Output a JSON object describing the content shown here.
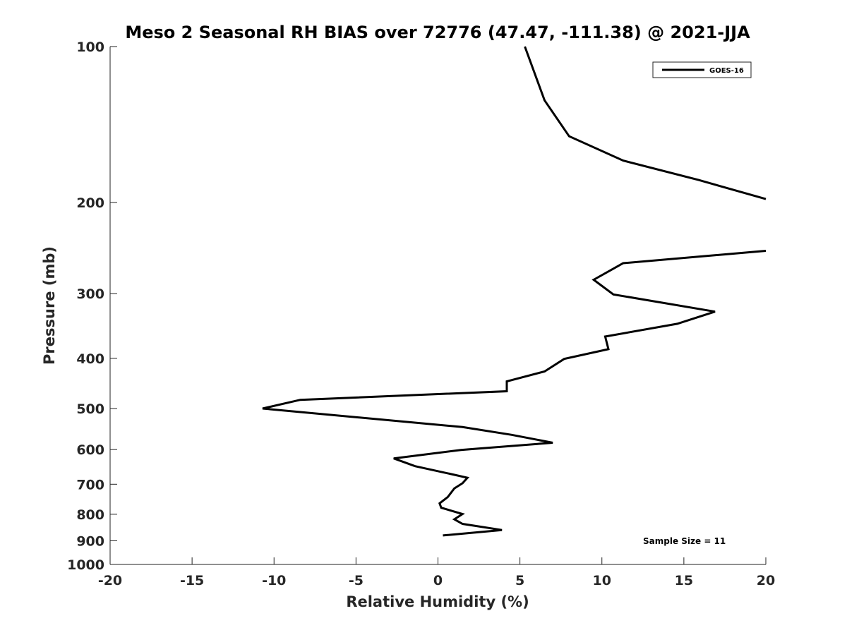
{
  "chart_data": {
    "type": "line",
    "title": "Meso 2 Seasonal RH BIAS over 72776 (47.47, -111.38) @ 2021-JJA",
    "xlabel": "Relative Humidity (%)",
    "ylabel": "Pressure (mb)",
    "xlim": [
      -20,
      20
    ],
    "ylim": [
      100,
      1000
    ],
    "y_scale": "log",
    "y_direction": "reversed",
    "x_ticks": [
      "-20",
      "-15",
      "-10",
      "-5",
      "0",
      "5",
      "10",
      "15",
      "20"
    ],
    "y_ticks": [
      "100",
      "200",
      "300",
      "400",
      "500",
      "600",
      "700",
      "800",
      "900",
      "1000"
    ],
    "legend": {
      "placement": "top-right",
      "entries": [
        "GOES-16"
      ]
    },
    "annotation": "Sample Size = 11",
    "series": [
      {
        "name": "GOES-16",
        "color": "#000000",
        "segments": [
          [
            {
              "x": 5.3,
              "y": 100
            },
            {
              "x": 6.5,
              "y": 127
            },
            {
              "x": 8.0,
              "y": 149
            },
            {
              "x": 11.3,
              "y": 166
            },
            {
              "x": 15.9,
              "y": 181
            },
            {
              "x": 20.0,
              "y": 197
            }
          ],
          [
            {
              "x": 20.0,
              "y": 248
            },
            {
              "x": 11.3,
              "y": 262
            },
            {
              "x": 9.5,
              "y": 282
            },
            {
              "x": 10.7,
              "y": 301
            },
            {
              "x": 16.9,
              "y": 325
            },
            {
              "x": 14.6,
              "y": 343
            },
            {
              "x": 10.2,
              "y": 363
            },
            {
              "x": 10.4,
              "y": 384
            },
            {
              "x": 7.7,
              "y": 401
            },
            {
              "x": 6.5,
              "y": 424
            },
            {
              "x": 4.2,
              "y": 443
            },
            {
              "x": 4.2,
              "y": 463
            },
            {
              "x": -8.4,
              "y": 481
            },
            {
              "x": -10.7,
              "y": 500
            },
            {
              "x": 1.5,
              "y": 543
            },
            {
              "x": 4.5,
              "y": 562
            },
            {
              "x": 7.0,
              "y": 582
            },
            {
              "x": 1.4,
              "y": 601
            },
            {
              "x": -2.7,
              "y": 624
            },
            {
              "x": -1.4,
              "y": 646
            },
            {
              "x": 0.7,
              "y": 668
            },
            {
              "x": 1.8,
              "y": 680
            },
            {
              "x": 1.5,
              "y": 697
            },
            {
              "x": 1.0,
              "y": 713
            },
            {
              "x": 0.6,
              "y": 741
            },
            {
              "x": 0.1,
              "y": 762
            },
            {
              "x": 0.2,
              "y": 777
            },
            {
              "x": 1.5,
              "y": 799
            },
            {
              "x": 1.0,
              "y": 818
            },
            {
              "x": 1.5,
              "y": 835
            },
            {
              "x": 3.9,
              "y": 858
            },
            {
              "x": 0.3,
              "y": 879
            }
          ]
        ]
      }
    ]
  }
}
